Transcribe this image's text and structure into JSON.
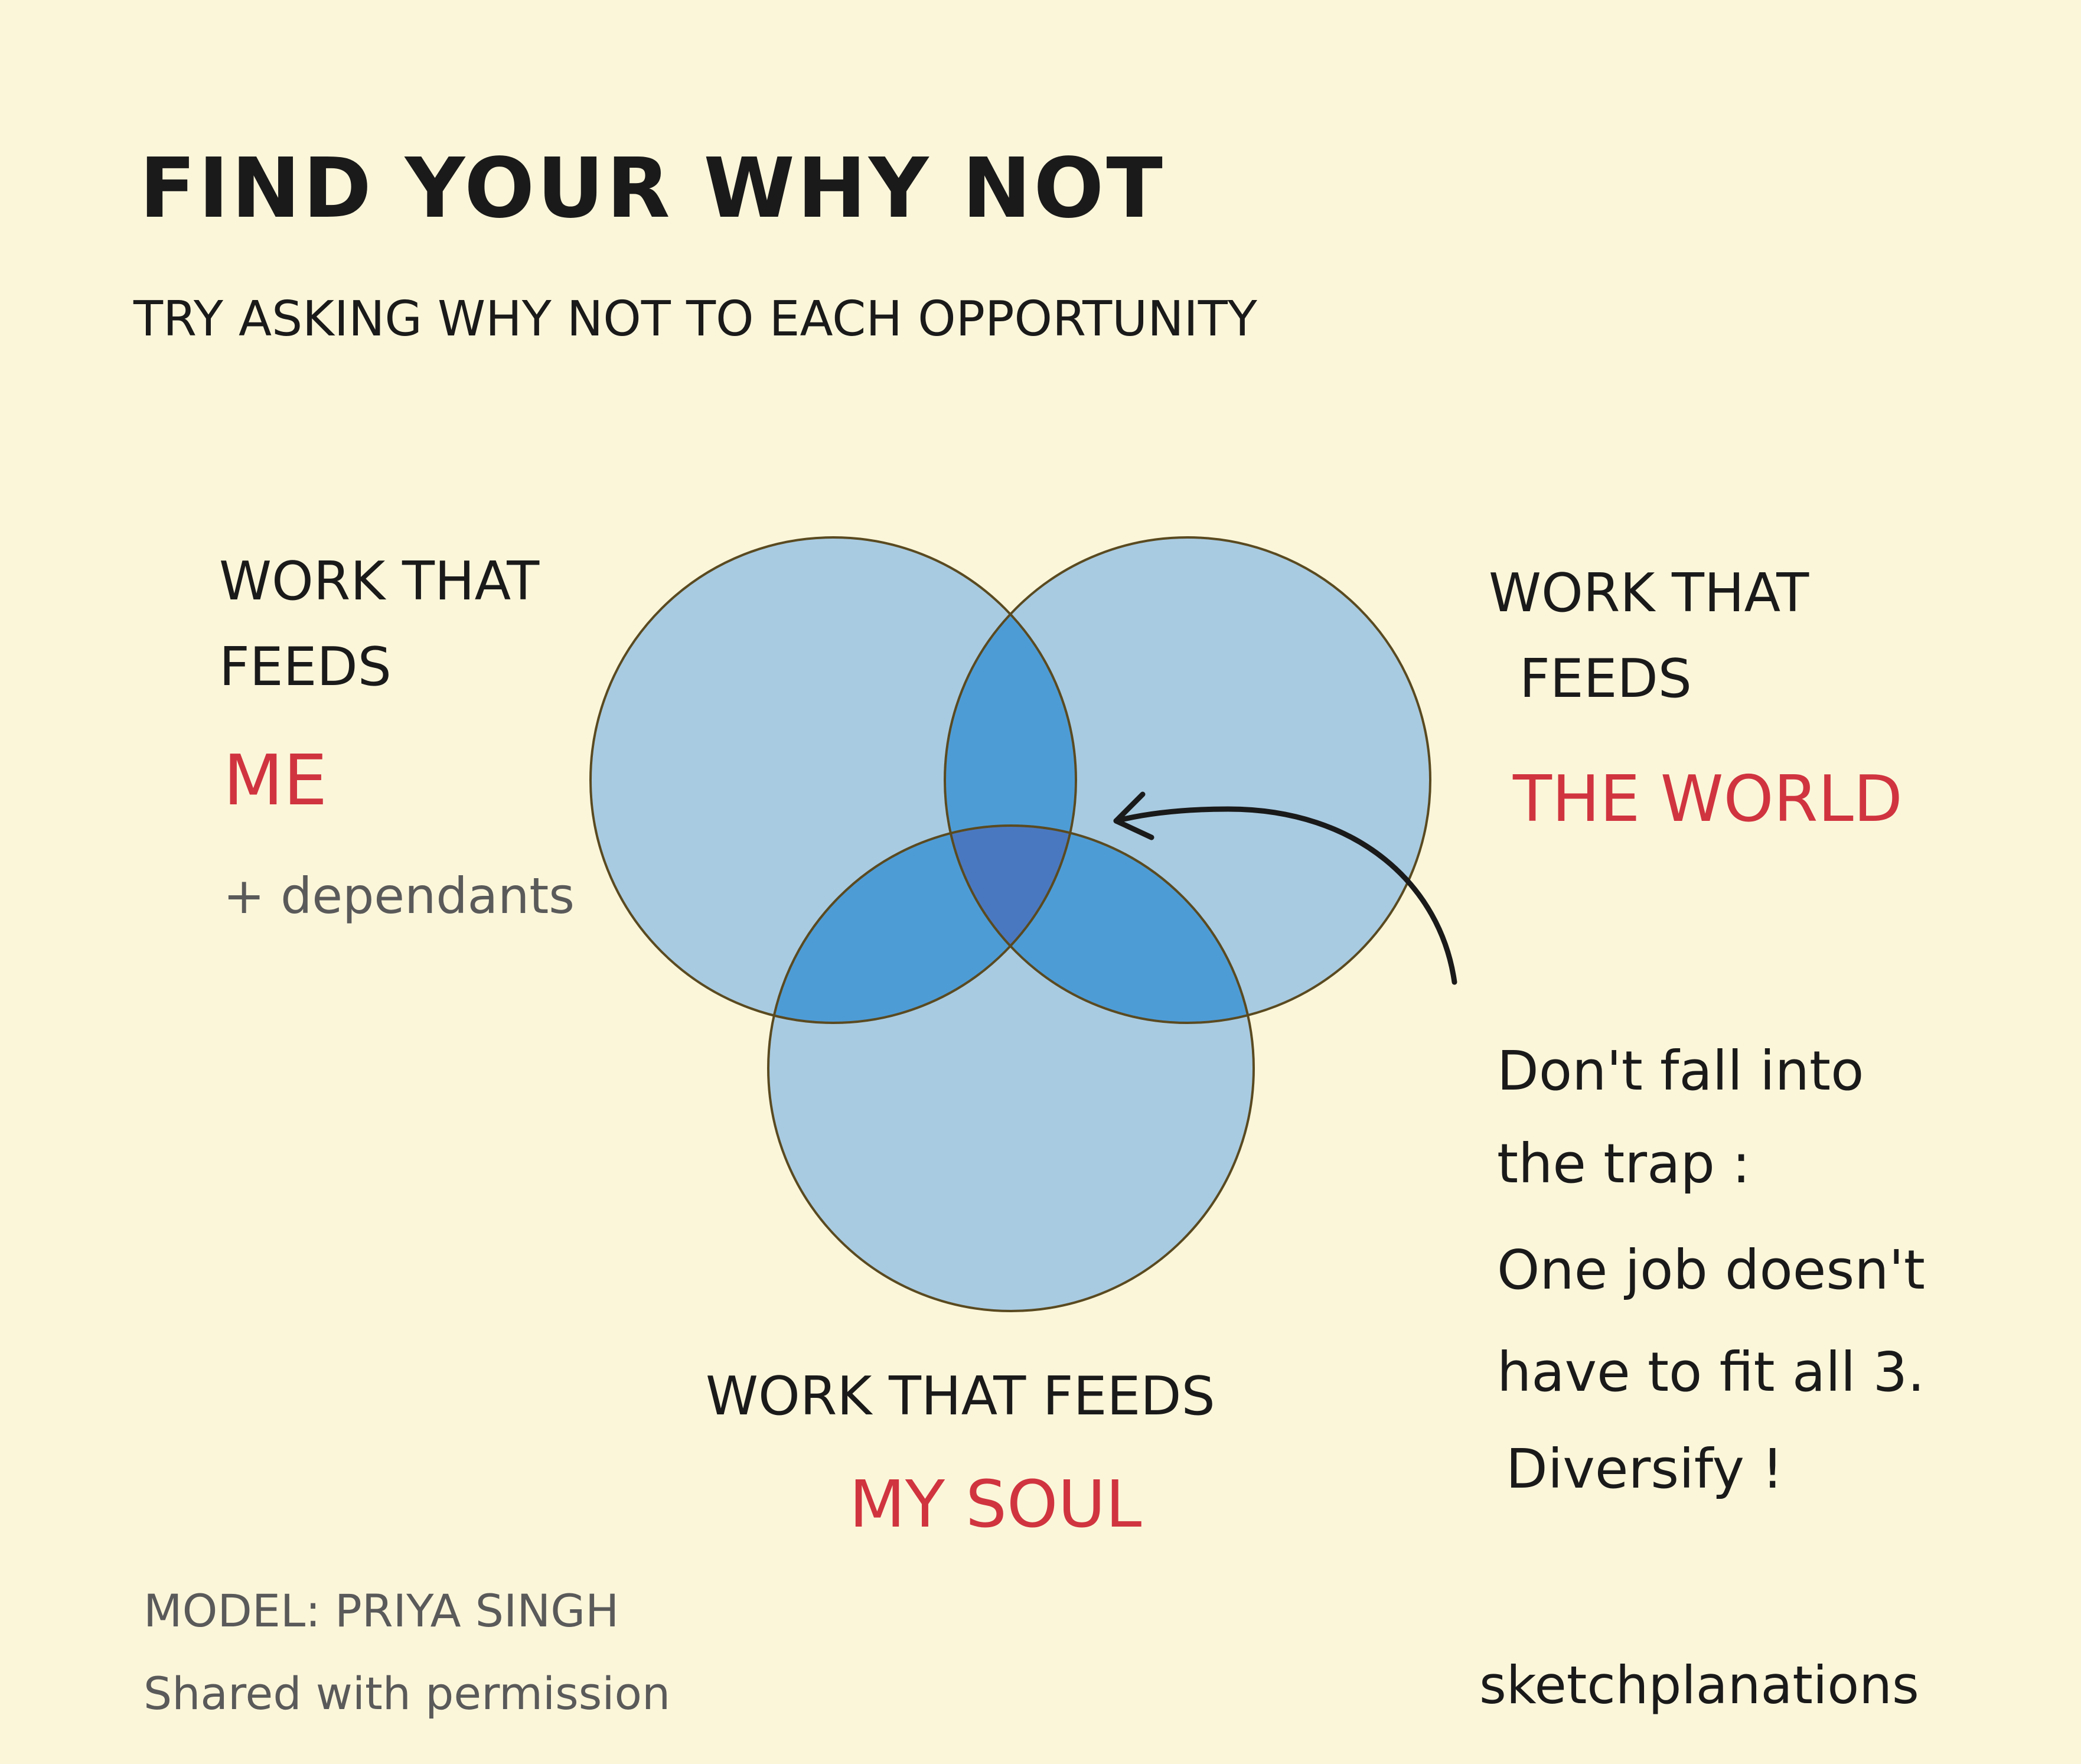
{
  "title": "FIND YOUR WHY NOT",
  "subtitle": "TRY ASKING WHY NOT TO EACH OPPORTUNITY",
  "colors": {
    "background": "#fbf6da",
    "circle": "#a9cbe1",
    "pair_overlap": "#4e9cd6",
    "center_overlap": "#4a78c0",
    "outline": "#5a4a20",
    "accent_red": "#d0343f"
  },
  "circles": {
    "left": {
      "line1": "WORK THAT",
      "line2": "FEEDS",
      "emphasis": "ME",
      "extra": "+ dependants"
    },
    "right": {
      "line1": "WORK THAT",
      "line2": "FEEDS",
      "emphasis": "THE WORLD"
    },
    "bottom": {
      "line1": "WORK THAT FEEDS",
      "emphasis": "MY SOUL"
    }
  },
  "note": {
    "lines": [
      "Don't fall into",
      "the trap :",
      "One job doesn't",
      "have to fit all 3.",
      "Diversify !"
    ],
    "arrow_icon": "curved-arrow-left"
  },
  "footer": {
    "model": "MODEL: PRIYA SINGH",
    "shared": "Shared with permission",
    "brand": "sketchplanations"
  }
}
